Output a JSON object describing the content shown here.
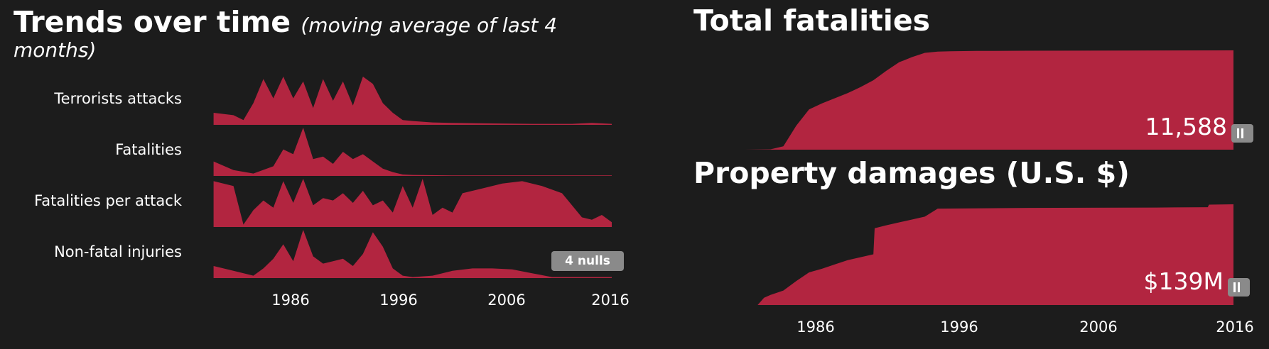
{
  "left_panel": {
    "title": "Trends over time",
    "subtitle_line1": "(moving average of last 4",
    "subtitle_line2": "months)",
    "null_badge": "4 nulls"
  },
  "right_panel": {
    "title_fatalities": "Total fatalities",
    "title_damages": "Property damages (U.S. $)",
    "total_fatalities_label": "11,588",
    "property_damages_label": "$139M"
  },
  "colors": {
    "background": "#1c1c1c",
    "area_fill": "#b22540",
    "text": "#ffffff",
    "badge": "#8a8a8a"
  },
  "icons": [
    "pause-icon"
  ],
  "chart_data": [
    {
      "type": "area",
      "name": "Terrorists attacks",
      "x": [
        1976,
        1978,
        1979,
        1980,
        1981,
        1982,
        1983,
        1984,
        1985,
        1986,
        1987,
        1988,
        1989,
        1990,
        1991,
        1992,
        1993,
        1994,
        1995,
        1996,
        1998,
        2000,
        2004,
        2008,
        2012,
        2014,
        2016
      ],
      "values": [
        0.25,
        0.2,
        0.1,
        0.45,
        0.95,
        0.55,
        1.0,
        0.55,
        0.9,
        0.35,
        0.95,
        0.5,
        0.9,
        0.4,
        1.0,
        0.85,
        0.45,
        0.25,
        0.1,
        0.08,
        0.05,
        0.04,
        0.03,
        0.02,
        0.02,
        0.04,
        0.02
      ],
      "xlim": [
        1975.6,
        2016
      ]
    },
    {
      "type": "area",
      "name": "Fatalities",
      "x": [
        1976,
        1978,
        1980,
        1982,
        1983,
        1984,
        1985,
        1986,
        1987,
        1988,
        1989,
        1990,
        1991,
        1992,
        1993,
        1994,
        1995,
        1996,
        2000,
        2008,
        2016
      ],
      "values": [
        0.3,
        0.12,
        0.05,
        0.2,
        0.55,
        0.45,
        1.0,
        0.35,
        0.4,
        0.25,
        0.5,
        0.35,
        0.45,
        0.3,
        0.15,
        0.08,
        0.03,
        0.02,
        0.01,
        0.01,
        0.01
      ],
      "xlim": [
        1975.6,
        2016
      ]
    },
    {
      "type": "area",
      "name": "Fatalities per attack",
      "x": [
        1976,
        1978,
        1979,
        1980,
        1981,
        1982,
        1983,
        1984,
        1985,
        1986,
        1987,
        1988,
        1989,
        1990,
        1991,
        1992,
        1993,
        1994,
        1995,
        1996,
        1997,
        1998,
        1999,
        2000,
        2001,
        2003,
        2005,
        2007,
        2009,
        2011,
        2012,
        2013,
        2014,
        2015,
        2016
      ],
      "values": [
        0.95,
        0.85,
        0.05,
        0.35,
        0.55,
        0.4,
        0.95,
        0.5,
        1.0,
        0.45,
        0.6,
        0.55,
        0.7,
        0.5,
        0.75,
        0.45,
        0.55,
        0.3,
        0.85,
        0.4,
        1.0,
        0.25,
        0.4,
        0.3,
        0.7,
        0.8,
        0.9,
        0.95,
        0.85,
        0.7,
        0.45,
        0.2,
        0.15,
        0.25,
        0.1
      ],
      "xlim": [
        1975.6,
        2016
      ]
    },
    {
      "type": "area",
      "name": "Non-fatal injuries",
      "x": [
        1976,
        1978,
        1980,
        1981,
        1982,
        1983,
        1984,
        1985,
        1986,
        1987,
        1988,
        1989,
        1990,
        1991,
        1992,
        1993,
        1994,
        1995,
        1996,
        1998,
        2000,
        2002,
        2004,
        2006,
        2008,
        2010,
        2012,
        2016
      ],
      "values": [
        0.25,
        0.15,
        0.05,
        0.2,
        0.4,
        0.7,
        0.35,
        1.0,
        0.45,
        0.3,
        0.35,
        0.4,
        0.25,
        0.5,
        0.95,
        0.65,
        0.2,
        0.05,
        0.02,
        0.05,
        0.15,
        0.2,
        0.2,
        0.18,
        0.1,
        0.02,
        0.02,
        0.02
      ],
      "xlim": [
        1975.6,
        2016
      ]
    },
    {
      "type": "area",
      "name": "Total fatalities",
      "x": [
        1976,
        1978,
        1980,
        1981,
        1982,
        1983,
        1984,
        1985,
        1986,
        1987,
        1988,
        1989,
        1990,
        1991,
        1992,
        1993,
        1994,
        1996,
        2000,
        2008,
        2016
      ],
      "values": [
        0,
        0,
        40,
        400,
        2800,
        4700,
        5400,
        6000,
        6600,
        7300,
        8100,
        9200,
        10200,
        10800,
        11300,
        11450,
        11480,
        11520,
        11550,
        11570,
        11588
      ],
      "xlim": [
        1976,
        2016
      ],
      "ylim": [
        0,
        11588
      ],
      "xticks": [
        "1986",
        "1996",
        "2006",
        "2016"
      ]
    },
    {
      "type": "area",
      "name": "Property damages (U.S. $)",
      "x": [
        1976,
        1979,
        1979.5,
        1980,
        1981,
        1982,
        1983,
        1984,
        1985,
        1986,
        1987,
        1988,
        1988.1,
        1989,
        1990,
        1991,
        1992,
        1993,
        2000,
        2010,
        2014,
        2014.1,
        2016
      ],
      "values": [
        0,
        0,
        10,
        14,
        20,
        33,
        45,
        50,
        56,
        62,
        66,
        70,
        106,
        110,
        114,
        118,
        122,
        133,
        134,
        134.5,
        135,
        138.5,
        139
      ],
      "xlim": [
        1976,
        2016
      ],
      "ylim": [
        0,
        139
      ],
      "xticks": [
        "1986",
        "1996",
        "2006",
        "2016"
      ]
    }
  ],
  "left_axis_ticks": [
    "1986",
    "1996",
    "2006",
    "2016"
  ]
}
